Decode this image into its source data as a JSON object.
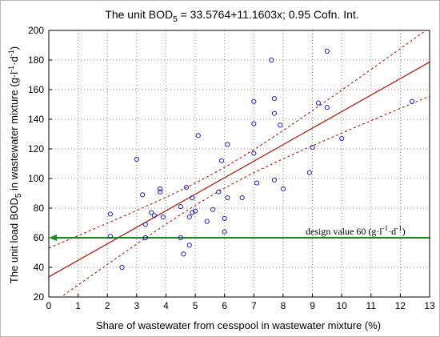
{
  "chart_data": {
    "type": "scatter",
    "title_prefix": "The unit BOD",
    "title_sub": "5",
    "title_suffix": " = 33.5764+11.1603x; 0.95 Cofn. Int.",
    "xlabel": "Share of wastewater from cesspool in wastewater mixture (%)",
    "ylabel_prefix": "The unit load BOD",
    "ylabel_sub": "5",
    "ylabel_suffix": " in wastewater mixture (g·l",
    "ylabel_sup1": "-1",
    "ylabel_mid": "·d",
    "ylabel_sup2": "-1",
    "ylabel_end": ")",
    "xlim": [
      0,
      13
    ],
    "ylim": [
      20,
      200
    ],
    "x_ticks": [
      "0",
      "1",
      "2",
      "3",
      "4",
      "5",
      "6",
      "7",
      "8",
      "9",
      "10",
      "11",
      "12",
      "13"
    ],
    "y_ticks": [
      "20",
      "40",
      "60",
      "80",
      "100",
      "120",
      "140",
      "160",
      "180",
      "200"
    ],
    "grid": true,
    "regression": {
      "intercept": 33.5764,
      "slope": 11.1603
    },
    "confidence_band_label": "0.95 Cofn. Int.",
    "design_line": {
      "y": 60,
      "label_prefix": "design value 60 (g·l",
      "label_sup1": "-1",
      "label_mid": "·d",
      "label_sup2": "-1",
      "label_end": ")"
    },
    "colors": {
      "points": "#2222cc",
      "regression": "#b03020",
      "confidence": "#b03020",
      "design_line": "#1a8a1a",
      "grid": "#8a8a8a"
    },
    "points": [
      [
        2.1,
        76
      ],
      [
        2.1,
        61
      ],
      [
        2.5,
        40
      ],
      [
        3.0,
        113
      ],
      [
        3.2,
        89
      ],
      [
        3.3,
        69
      ],
      [
        3.3,
        60
      ],
      [
        3.5,
        77
      ],
      [
        3.6,
        75
      ],
      [
        3.8,
        93
      ],
      [
        3.8,
        91
      ],
      [
        3.9,
        74
      ],
      [
        4.5,
        81
      ],
      [
        4.5,
        60
      ],
      [
        4.6,
        49
      ],
      [
        4.7,
        94
      ],
      [
        4.8,
        74
      ],
      [
        4.8,
        55
      ],
      [
        4.9,
        87
      ],
      [
        4.9,
        77
      ],
      [
        5.0,
        78
      ],
      [
        5.1,
        129
      ],
      [
        5.4,
        71
      ],
      [
        5.6,
        79
      ],
      [
        5.8,
        91
      ],
      [
        5.9,
        112
      ],
      [
        6.0,
        73
      ],
      [
        6.0,
        64
      ],
      [
        6.1,
        123
      ],
      [
        6.1,
        87
      ],
      [
        6.6,
        87
      ],
      [
        7.0,
        152
      ],
      [
        7.0,
        137
      ],
      [
        7.0,
        117
      ],
      [
        7.1,
        97
      ],
      [
        7.6,
        180
      ],
      [
        7.7,
        154
      ],
      [
        7.7,
        144
      ],
      [
        7.7,
        99
      ],
      [
        7.9,
        136
      ],
      [
        8.0,
        93
      ],
      [
        8.9,
        104
      ],
      [
        9.0,
        121
      ],
      [
        9.2,
        151
      ],
      [
        9.5,
        186
      ],
      [
        9.5,
        148
      ],
      [
        10.0,
        127
      ],
      [
        12.4,
        152
      ]
    ]
  }
}
